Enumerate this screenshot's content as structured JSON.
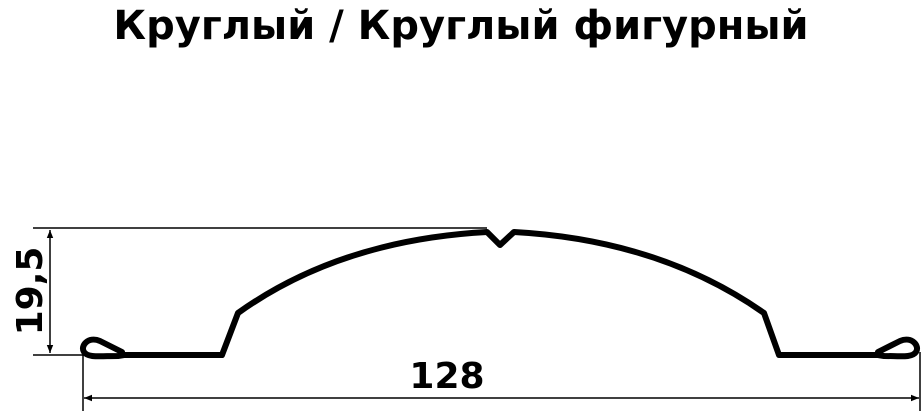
{
  "title": "Круглый / Круглый фигурный",
  "dimensions": {
    "height_label": "19,5",
    "width_label": "128"
  },
  "colors": {
    "stroke": "#000000",
    "background": "#ffffff"
  }
}
